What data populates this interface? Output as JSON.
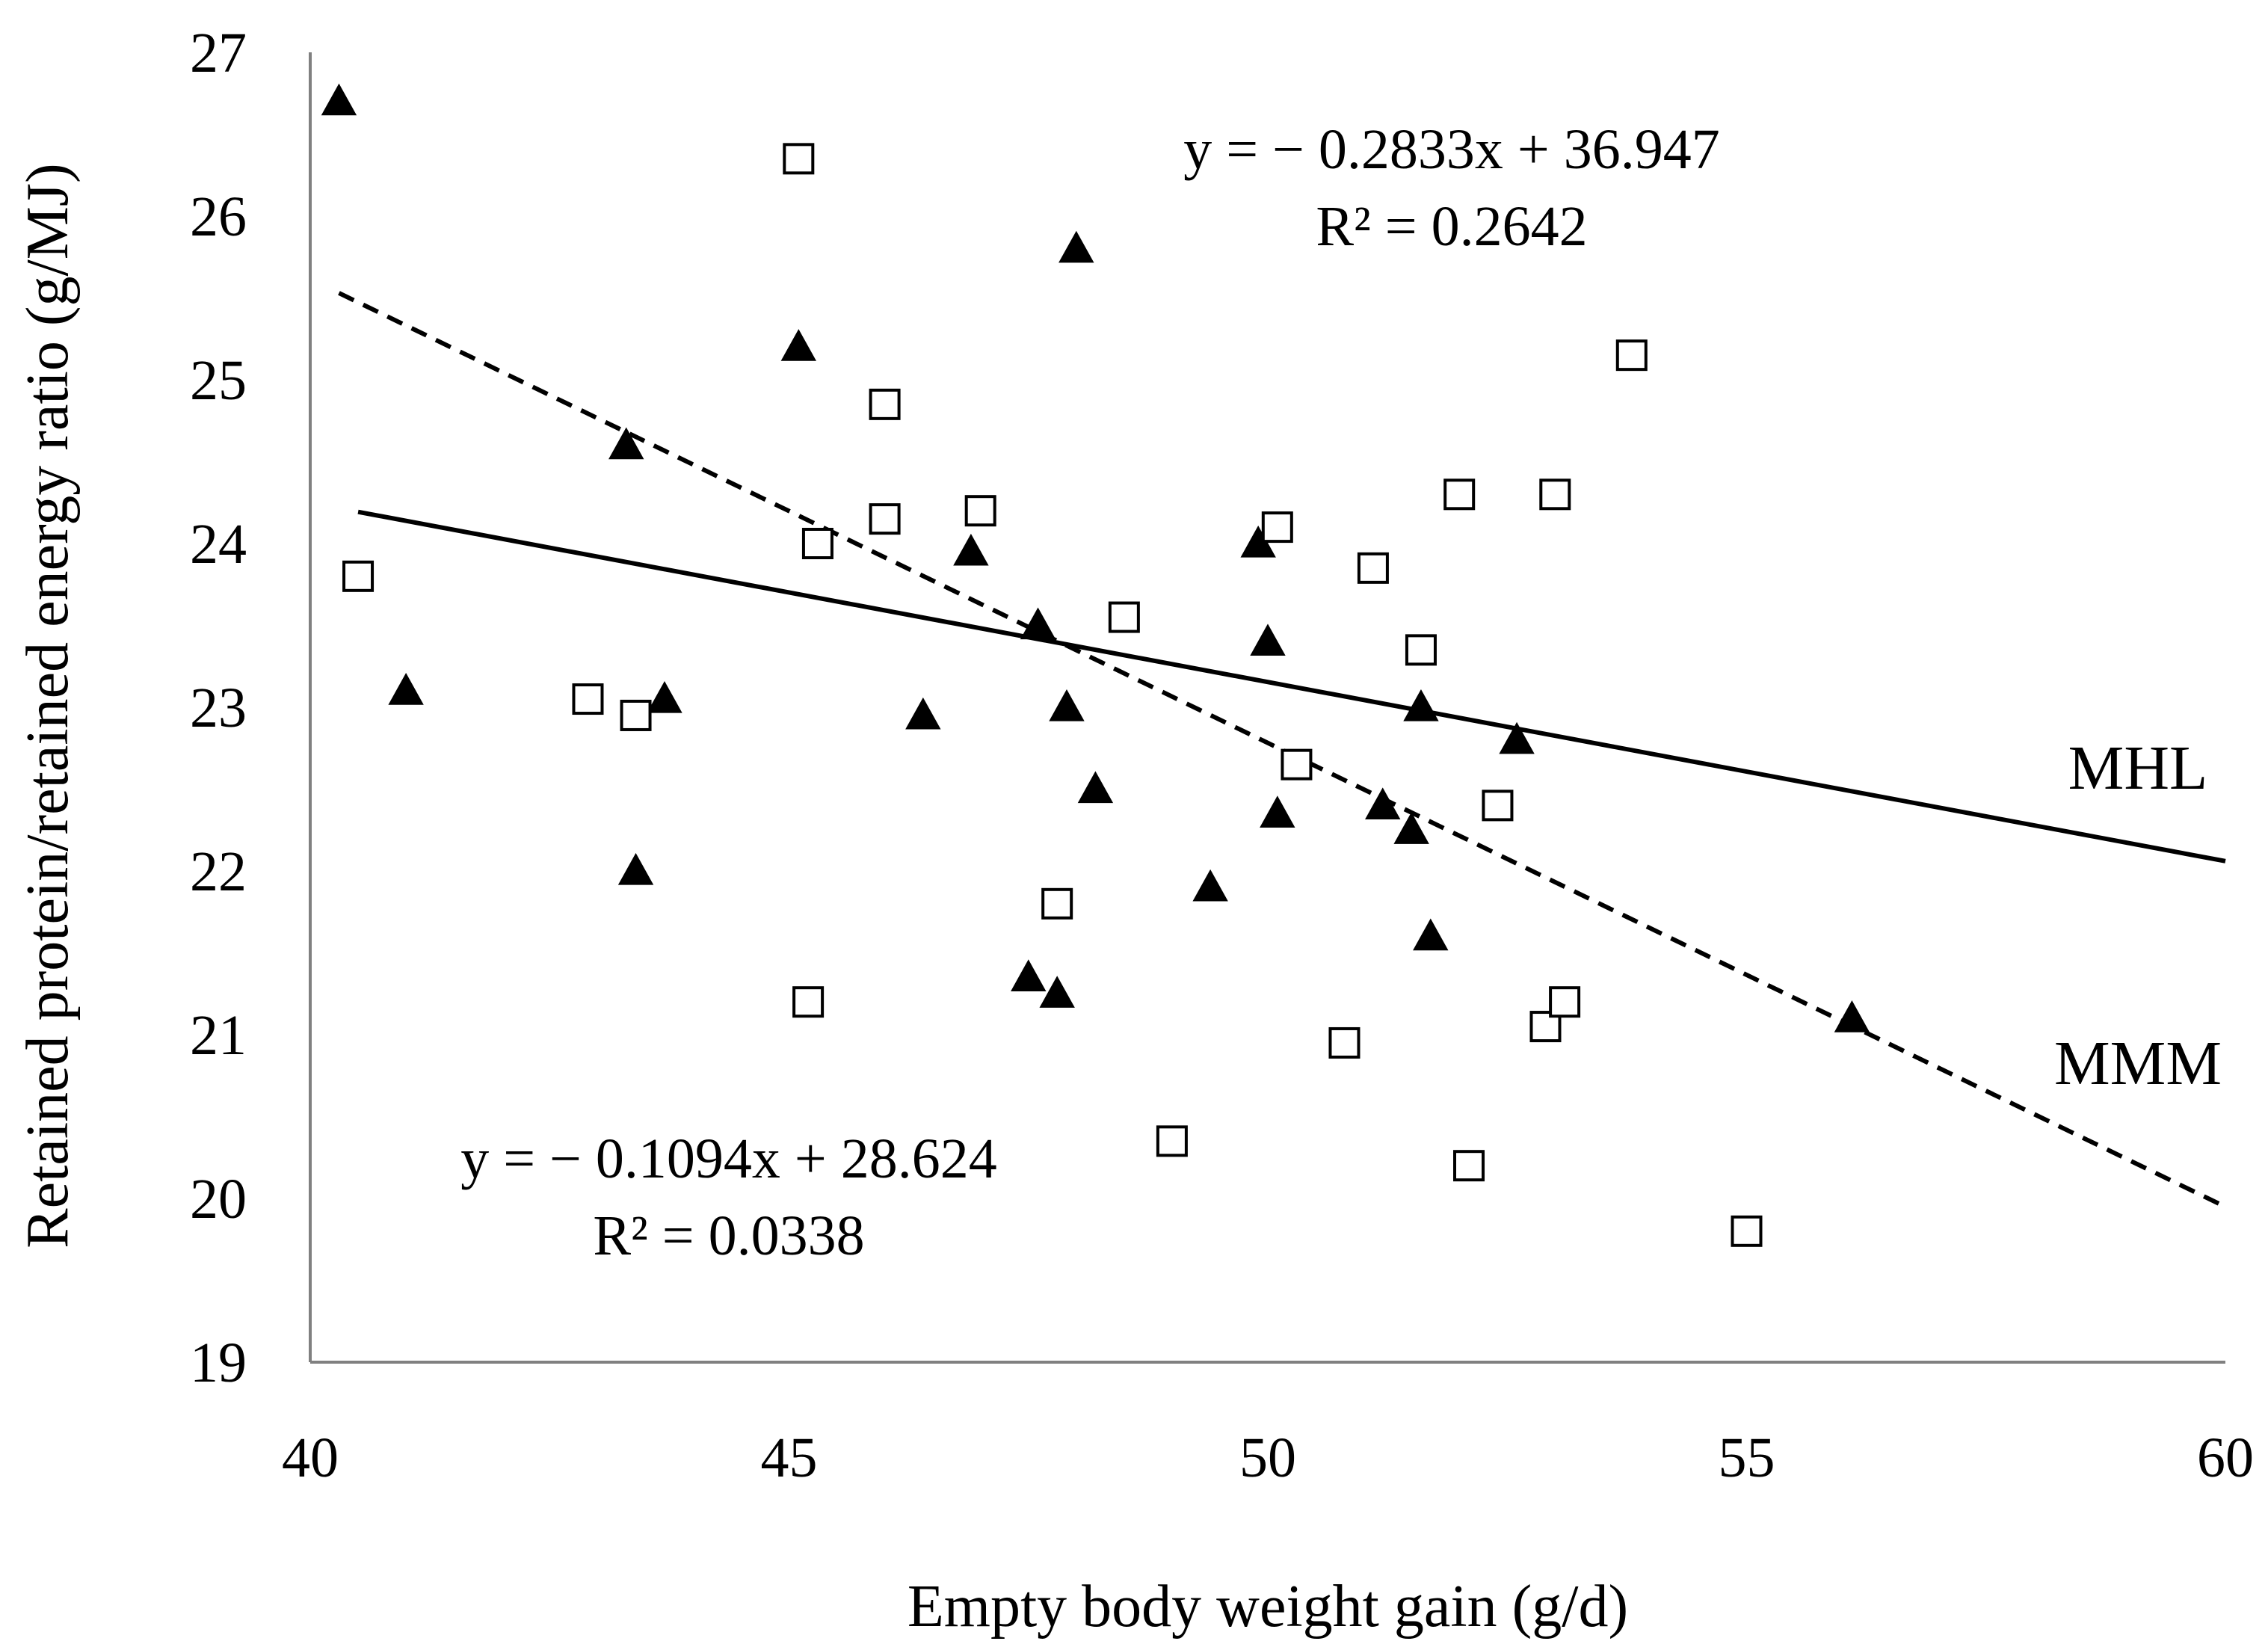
{
  "chart_data": {
    "type": "scatter",
    "title": "",
    "xlabel": "Empty body weight gain (g/d)",
    "ylabel": "Retained protein/retained energy ratio (g/MJ)",
    "xlim": [
      40,
      60
    ],
    "ylim": [
      19,
      27
    ],
    "xticks": [
      40,
      45,
      50,
      55,
      60
    ],
    "yticks": [
      19,
      20,
      21,
      22,
      23,
      24,
      25,
      26,
      27
    ],
    "grid": false,
    "series": [
      {
        "name": "MHL",
        "marker": "filled-triangle",
        "color": "#000000",
        "points": [
          [
            40.3,
            26.7
          ],
          [
            41.0,
            23.1
          ],
          [
            43.3,
            24.6
          ],
          [
            43.4,
            22.0
          ],
          [
            43.7,
            23.05
          ],
          [
            45.1,
            25.2
          ],
          [
            46.4,
            22.95
          ],
          [
            46.9,
            23.95
          ],
          [
            47.5,
            21.35
          ],
          [
            47.6,
            23.5
          ],
          [
            47.8,
            21.25
          ],
          [
            47.9,
            23.0
          ],
          [
            48.0,
            25.8
          ],
          [
            48.2,
            22.5
          ],
          [
            49.4,
            21.9
          ],
          [
            49.9,
            24.0
          ],
          [
            50.0,
            23.4
          ],
          [
            50.1,
            22.35
          ],
          [
            51.2,
            22.4
          ],
          [
            51.5,
            22.25
          ],
          [
            51.6,
            23.0
          ],
          [
            51.7,
            21.6
          ],
          [
            52.6,
            22.8
          ],
          [
            56.1,
            21.1
          ]
        ]
      },
      {
        "name": "MMM",
        "marker": "open-square",
        "color": "#000000",
        "points": [
          [
            40.5,
            23.8
          ],
          [
            42.9,
            23.05
          ],
          [
            43.4,
            22.95
          ],
          [
            45.1,
            26.35
          ],
          [
            45.2,
            21.2
          ],
          [
            45.3,
            24.0
          ],
          [
            46.0,
            24.85
          ],
          [
            46.0,
            24.15
          ],
          [
            47.0,
            24.2
          ],
          [
            47.8,
            21.8
          ],
          [
            48.5,
            23.55
          ],
          [
            49.0,
            20.35
          ],
          [
            50.1,
            24.1
          ],
          [
            50.3,
            22.65
          ],
          [
            50.8,
            20.95
          ],
          [
            51.1,
            23.85
          ],
          [
            51.6,
            23.35
          ],
          [
            52.0,
            24.3
          ],
          [
            52.1,
            20.2
          ],
          [
            52.4,
            22.4
          ],
          [
            52.9,
            21.05
          ],
          [
            53.0,
            24.3
          ],
          [
            53.1,
            21.2
          ],
          [
            53.8,
            25.15
          ],
          [
            55.0,
            19.8
          ]
        ]
      }
    ],
    "trendlines": [
      {
        "series": "MHL",
        "style": "solid",
        "slope": -0.1094,
        "intercept": 28.624,
        "x_range": [
          40.5,
          60
        ],
        "equation": "y = − 0.1094x + 28.624",
        "r2": "R² = 0.0338",
        "label": "MHL"
      },
      {
        "series": "MMM",
        "style": "dashed",
        "slope": -0.2833,
        "intercept": 36.947,
        "x_range": [
          40.3,
          60
        ],
        "equation": "y = − 0.2833x + 36.947",
        "r2": "R² = 0.2642",
        "label": "MMM"
      }
    ]
  }
}
